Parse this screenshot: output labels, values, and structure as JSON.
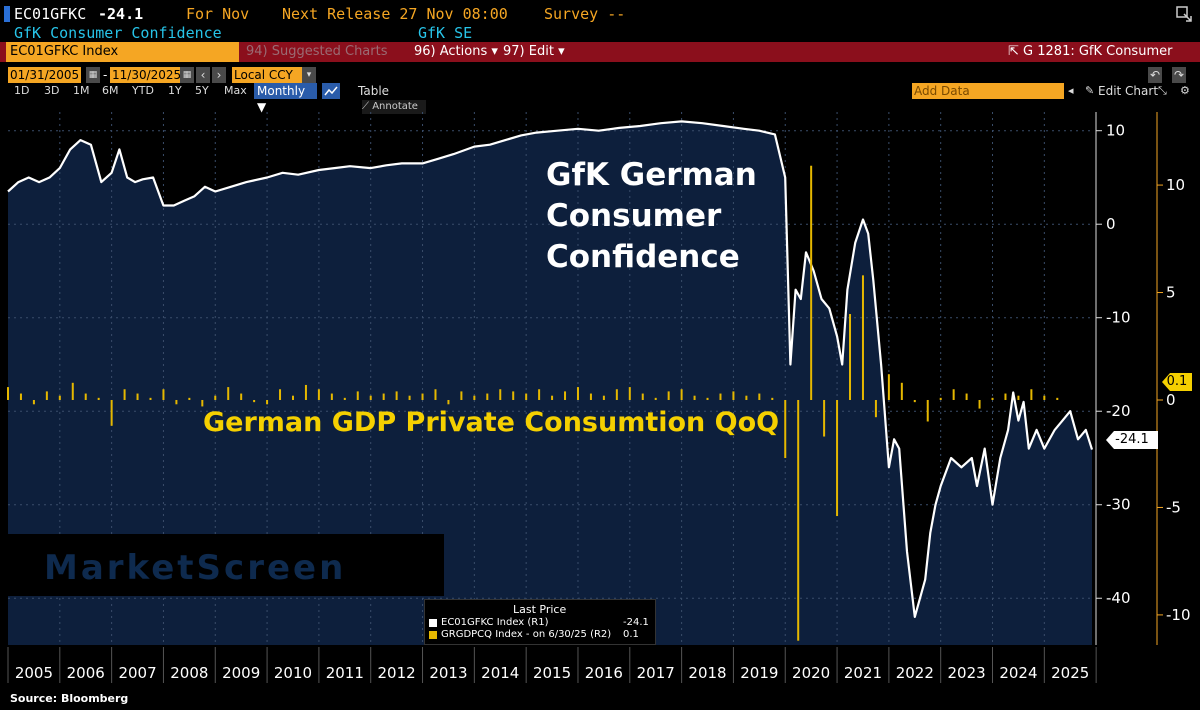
{
  "header": {
    "ticker": "EC01GFKC",
    "last": "-24.1",
    "for_label": "For Nov",
    "next_release": "Next Release 27 Nov 08:00",
    "survey": "Survey --",
    "description": "GfK Consumer Confidence",
    "source_org": "GfK SE"
  },
  "toolbar": {
    "security": "EC01GFKC Index",
    "suggested": "94) Suggested Charts",
    "actions": "96) Actions",
    "edit": "97) Edit",
    "chart_id": "G 1281: GfK Consumer"
  },
  "controls": {
    "start_date": "01/31/2005",
    "end_date": "11/30/2025",
    "currency": "Local CCY",
    "periods": [
      "1D",
      "3D",
      "1M",
      "6M",
      "YTD",
      "1Y",
      "5Y",
      "Max"
    ],
    "frequency": "Monthly",
    "table": "Table",
    "add_data_placeholder": "Add Data",
    "edit_chart": "Edit Chart",
    "annotate": "Annotate"
  },
  "annotations": {
    "title_line1": "GfK German",
    "title_line2": "Consumer",
    "title_line3": "Confidence",
    "gdp_label": "German GDP Private Consumtion QoQ",
    "watermark": "MarketScreen"
  },
  "legend": {
    "header": "Last Price",
    "series1_name": "EC01GFKC Index  (R1)",
    "series1_value": "-24.1",
    "series2_name": "GRGDPCQ Index -  on 6/30/25  (R2)",
    "series2_value": "0.1"
  },
  "source": "Source: Bloomberg",
  "colors": {
    "area": "#0d1f3c",
    "line": "#ffffff",
    "bars": "#e6b800",
    "amber": "#f5a623",
    "toolbar": "#8b0f1c"
  },
  "chart_data": [
    {
      "type": "area",
      "title": "GfK German Consumer Confidence",
      "axis": "R1",
      "ylim": [
        -45,
        12
      ],
      "y_ticks": [
        10,
        0,
        -10,
        -20,
        -30,
        -40
      ],
      "last_value": -24.1,
      "xlim": [
        2005.0,
        2025.92
      ],
      "x_labels": [
        "2005",
        "2006",
        "2007",
        "2008",
        "2009",
        "2010",
        "2011",
        "2012",
        "2013",
        "2014",
        "2015",
        "2016",
        "2017",
        "2018",
        "2019",
        "2020",
        "2021",
        "2022",
        "2023",
        "2024",
        "2025"
      ],
      "x": [
        2005.0,
        2005.2,
        2005.4,
        2005.6,
        2005.8,
        2006.0,
        2006.2,
        2006.4,
        2006.6,
        2006.8,
        2007.0,
        2007.15,
        2007.3,
        2007.45,
        2007.6,
        2007.8,
        2008.0,
        2008.2,
        2008.4,
        2008.6,
        2008.8,
        2009.0,
        2009.3,
        2009.6,
        2010.0,
        2010.3,
        2010.6,
        2011.0,
        2011.3,
        2011.6,
        2012.0,
        2012.3,
        2012.6,
        2013.0,
        2013.3,
        2013.6,
        2014.0,
        2014.3,
        2014.6,
        2014.9,
        2015.2,
        2015.6,
        2016.0,
        2016.4,
        2016.8,
        2017.2,
        2017.6,
        2018.0,
        2018.4,
        2018.8,
        2019.2,
        2019.5,
        2019.8,
        2020.0,
        2020.1,
        2020.2,
        2020.3,
        2020.4,
        2020.55,
        2020.7,
        2020.85,
        2021.0,
        2021.1,
        2021.2,
        2021.35,
        2021.5,
        2021.6,
        2021.7,
        2021.85,
        2022.0,
        2022.1,
        2022.2,
        2022.35,
        2022.5,
        2022.7,
        2022.8,
        2022.9,
        2023.0,
        2023.2,
        2023.4,
        2023.6,
        2023.7,
        2023.85,
        2024.0,
        2024.15,
        2024.3,
        2024.4,
        2024.5,
        2024.6,
        2024.7,
        2024.85,
        2025.0,
        2025.2,
        2025.35,
        2025.5,
        2025.65,
        2025.8,
        2025.92
      ],
      "values": [
        3.5,
        4.5,
        5,
        4.5,
        5,
        6,
        8,
        9,
        8.5,
        4.5,
        5.5,
        8,
        5,
        4.5,
        4.8,
        5,
        2,
        2,
        2.5,
        3,
        4,
        3.5,
        4,
        4.5,
        5,
        5.5,
        5.3,
        5.8,
        6,
        6.2,
        6,
        6.3,
        6.5,
        6.5,
        7,
        7.5,
        8.3,
        8.5,
        9,
        9.5,
        9.8,
        10,
        10.2,
        10,
        10.3,
        10.5,
        10.8,
        11,
        10.8,
        10.5,
        10.2,
        10,
        9.6,
        5,
        -15,
        -7,
        -8,
        -3,
        -5,
        -8,
        -9,
        -12,
        -15,
        -7,
        -2,
        0.5,
        -1,
        -6,
        -15,
        -26,
        -23,
        -24,
        -35,
        -42,
        -38,
        -33,
        -30,
        -28,
        -25,
        -26,
        -25,
        -28,
        -24,
        -30,
        -25,
        -22,
        -18,
        -21,
        -19,
        -24,
        -22,
        -24,
        -22,
        -21,
        -20,
        -23,
        -22,
        -24.1
      ]
    },
    {
      "type": "bar",
      "title": "German GDP Private Consumtion QoQ",
      "axis": "R2",
      "ylim": [
        -11.4,
        13.4
      ],
      "y_ticks": [
        10,
        5,
        0,
        -5,
        -10
      ],
      "last_value": 0.1,
      "x": [
        2005.0,
        2005.25,
        2005.5,
        2005.75,
        2006.0,
        2006.25,
        2006.5,
        2006.75,
        2007.0,
        2007.25,
        2007.5,
        2007.75,
        2008.0,
        2008.25,
        2008.5,
        2008.75,
        2009.0,
        2009.25,
        2009.5,
        2009.75,
        2010.0,
        2010.25,
        2010.5,
        2010.75,
        2011.0,
        2011.25,
        2011.5,
        2011.75,
        2012.0,
        2012.25,
        2012.5,
        2012.75,
        2013.0,
        2013.25,
        2013.5,
        2013.75,
        2014.0,
        2014.25,
        2014.5,
        2014.75,
        2015.0,
        2015.25,
        2015.5,
        2015.75,
        2016.0,
        2016.25,
        2016.5,
        2016.75,
        2017.0,
        2017.25,
        2017.5,
        2017.75,
        2018.0,
        2018.25,
        2018.5,
        2018.75,
        2019.0,
        2019.25,
        2019.5,
        2019.75,
        2020.0,
        2020.25,
        2020.5,
        2020.75,
        2021.0,
        2021.25,
        2021.5,
        2021.75,
        2022.0,
        2022.25,
        2022.5,
        2022.75,
        2023.0,
        2023.25,
        2023.5,
        2023.75,
        2024.0,
        2024.25,
        2024.5,
        2024.75,
        2025.0,
        2025.25
      ],
      "values": [
        0.6,
        0.3,
        -0.2,
        0.4,
        0.2,
        0.8,
        0.3,
        0.1,
        -1.2,
        0.5,
        0.3,
        0.1,
        0.5,
        -0.2,
        0.1,
        -0.3,
        0.2,
        0.6,
        0.3,
        -0.1,
        -0.2,
        0.5,
        0.2,
        0.7,
        0.5,
        0.3,
        0.1,
        0.4,
        0.2,
        0.3,
        0.4,
        0.2,
        0.3,
        0.5,
        -0.2,
        0.4,
        0.2,
        0.3,
        0.5,
        0.4,
        0.3,
        0.5,
        0.2,
        0.4,
        0.6,
        0.3,
        0.2,
        0.5,
        0.6,
        0.3,
        0.1,
        0.4,
        0.5,
        0.2,
        0.1,
        0.3,
        0.4,
        0.2,
        0.3,
        0.1,
        -2.7,
        -11.2,
        10.9,
        -1.7,
        -5.4,
        4.0,
        5.8,
        -0.8,
        1.2,
        0.8,
        -0.1,
        -1.0,
        0.1,
        0.5,
        0.3,
        -0.4,
        0.1,
        0.3,
        0.2,
        0.5,
        0.2,
        0.1
      ]
    }
  ]
}
